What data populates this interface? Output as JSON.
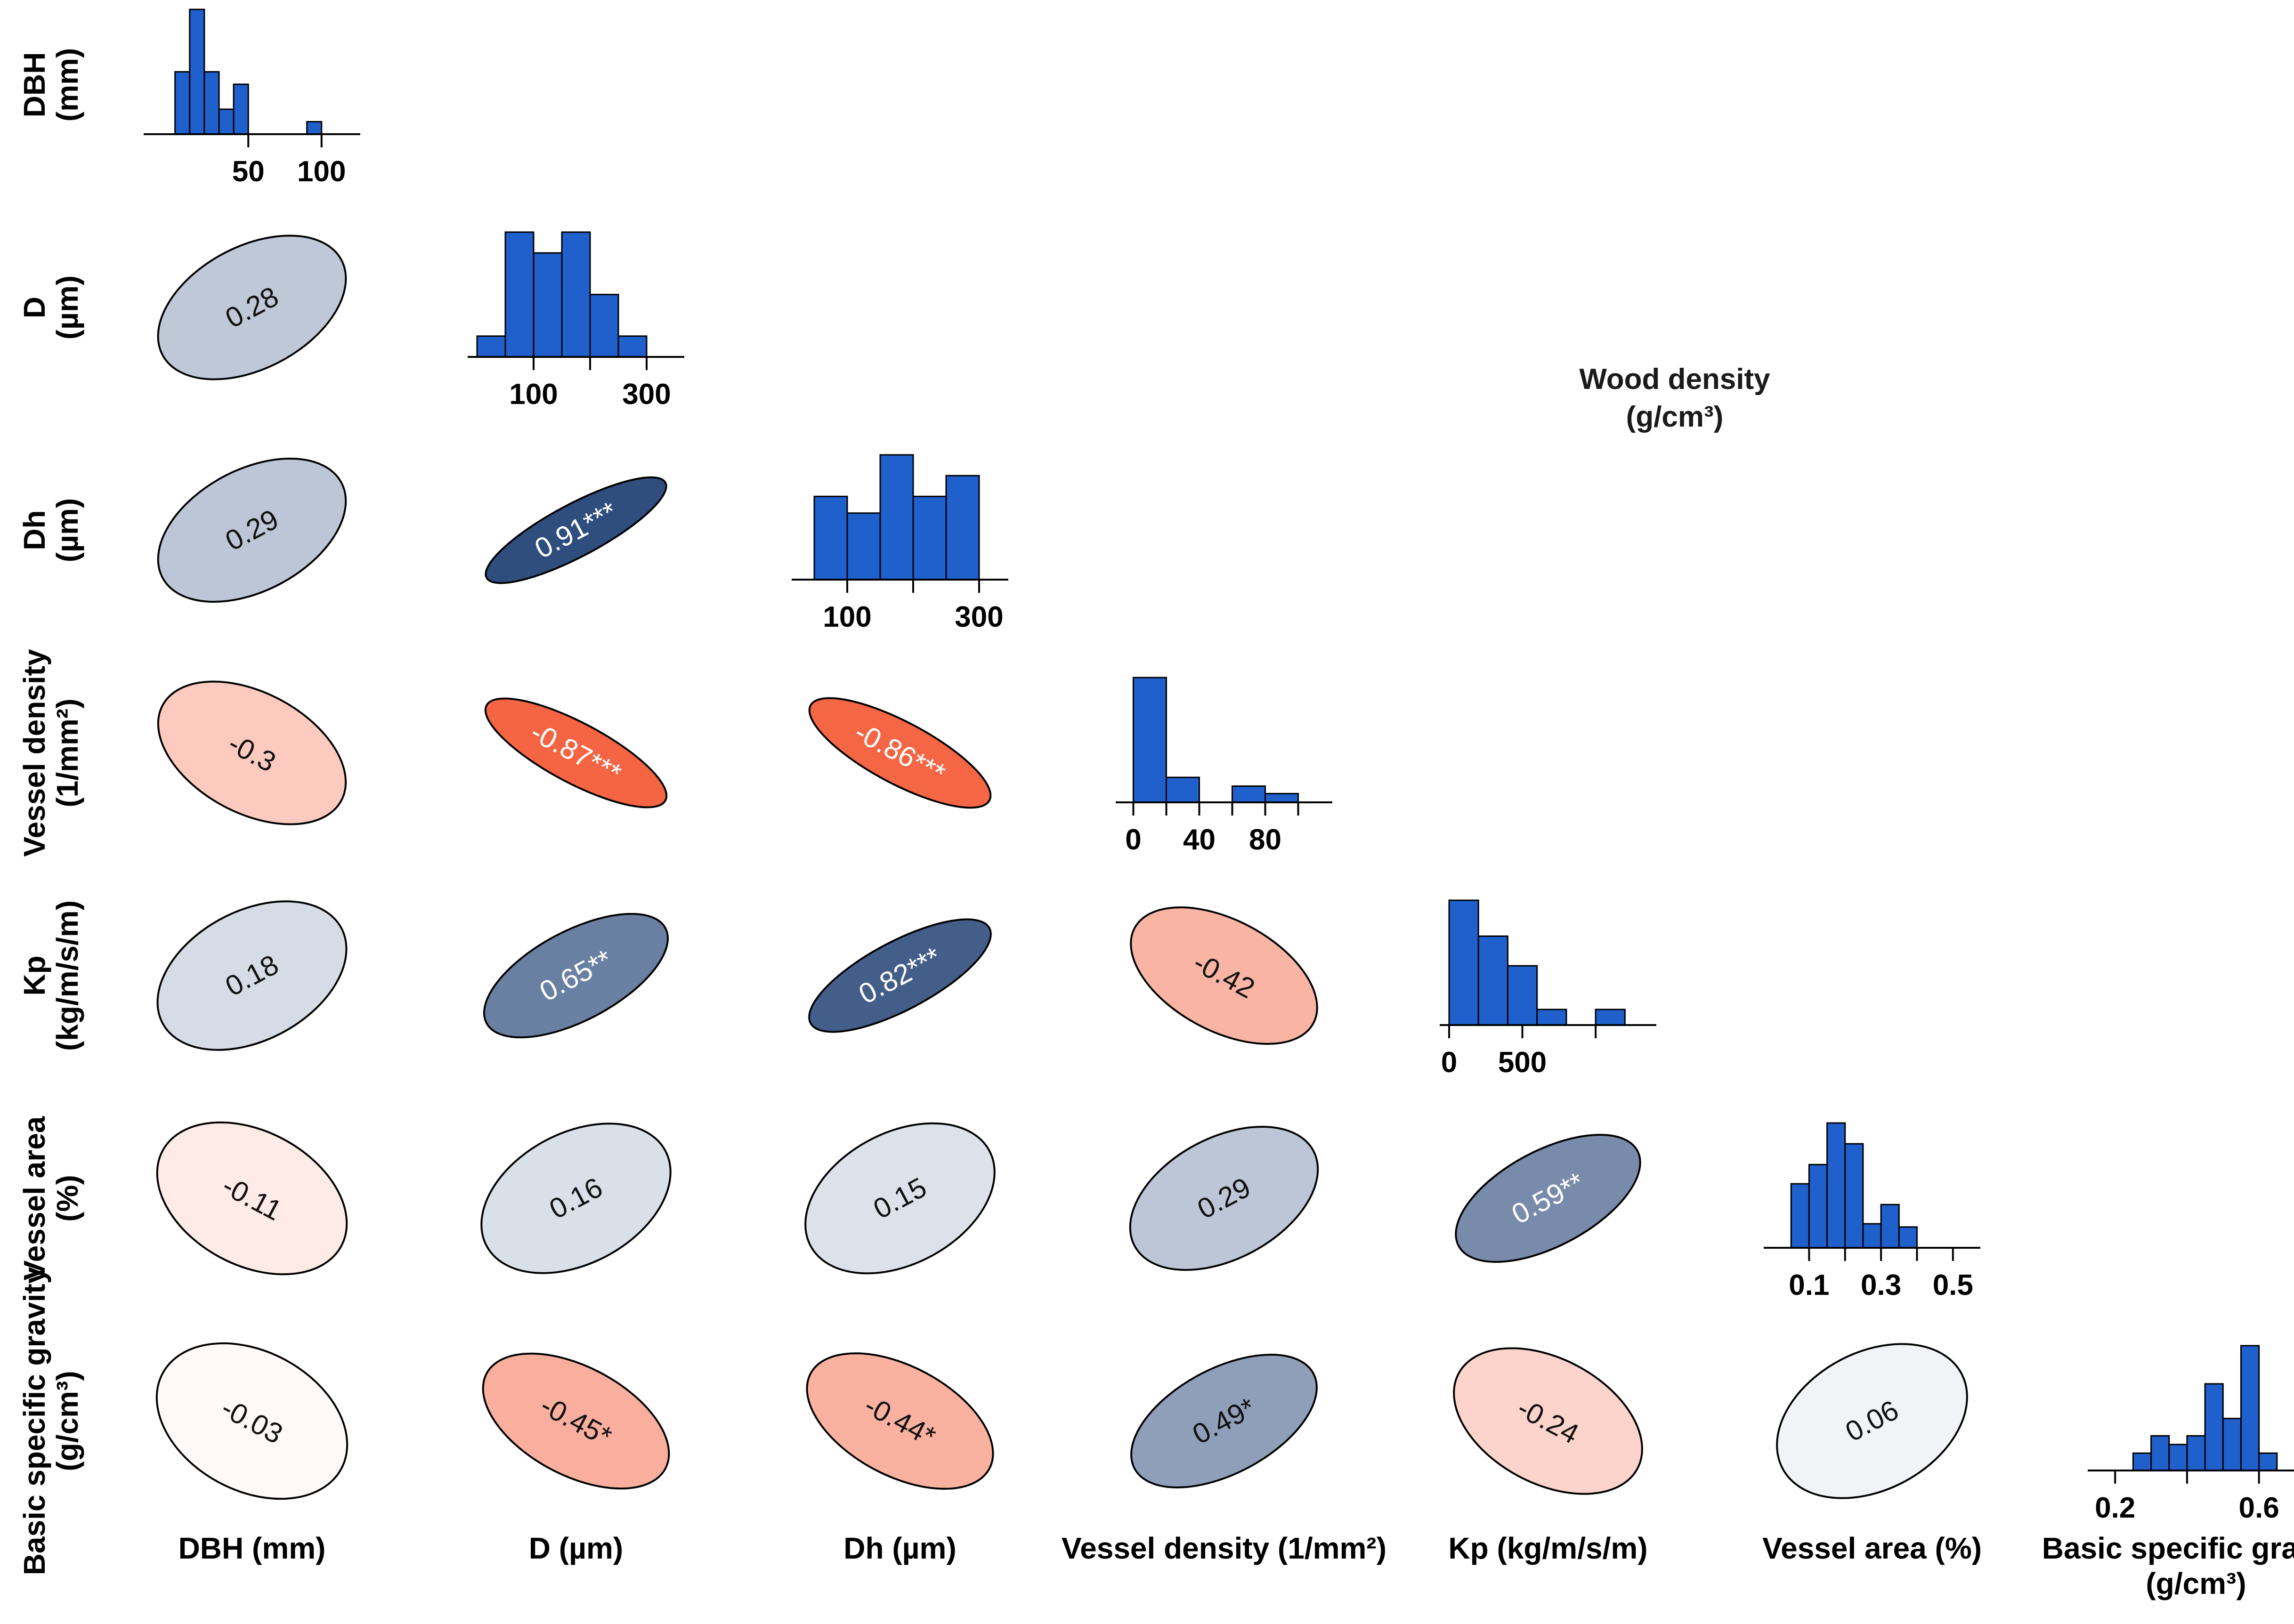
{
  "title": {
    "line1": "Wood density",
    "line2": "(g/cm³)"
  },
  "chart_data": {
    "type": "correlation-matrix",
    "variables": [
      {
        "key": "dbh",
        "name": "DBH",
        "unit": "(mm)",
        "bottom_label": "DBH (mm)"
      },
      {
        "key": "d",
        "name": "D",
        "unit": "(µm)",
        "bottom_label": "D (µm)"
      },
      {
        "key": "dh",
        "name": "Dh",
        "unit": "(µm)",
        "bottom_label": "Dh (µm)"
      },
      {
        "key": "vd",
        "name": "Vessel density",
        "unit": "(1/mm²)",
        "bottom_label": "Vessel density (1/mm²)"
      },
      {
        "key": "kp",
        "name": "Kp",
        "unit": "(kg/m/s/m)",
        "bottom_label": "Kp (kg/m/s/m)"
      },
      {
        "key": "va",
        "name": "Vessel area",
        "unit": "(%)",
        "bottom_label": "Vessel area (%)"
      },
      {
        "key": "bsg",
        "name": "Basic specific gravity",
        "unit": "(g/cm³)",
        "bottom_label": "Basic specific gravity",
        "bottom_label_2": "(g/cm³)"
      }
    ],
    "correlations": [
      {
        "row": 1,
        "col": 0,
        "label": "0.28",
        "r": 0.28
      },
      {
        "row": 2,
        "col": 0,
        "label": "0.29",
        "r": 0.29
      },
      {
        "row": 2,
        "col": 1,
        "label": "0.91***",
        "r": 0.91
      },
      {
        "row": 3,
        "col": 0,
        "label": "-0.3",
        "r": -0.3
      },
      {
        "row": 3,
        "col": 1,
        "label": "-0.87***",
        "r": -0.87
      },
      {
        "row": 3,
        "col": 2,
        "label": "-0.86***",
        "r": -0.86
      },
      {
        "row": 4,
        "col": 0,
        "label": "0.18",
        "r": 0.18
      },
      {
        "row": 4,
        "col": 1,
        "label": "0.65**",
        "r": 0.65
      },
      {
        "row": 4,
        "col": 2,
        "label": "0.82***",
        "r": 0.82
      },
      {
        "row": 4,
        "col": 3,
        "label": "-0.42",
        "r": -0.42
      },
      {
        "row": 5,
        "col": 0,
        "label": "-0.11",
        "r": -0.11
      },
      {
        "row": 5,
        "col": 1,
        "label": "0.16",
        "r": 0.16
      },
      {
        "row": 5,
        "col": 2,
        "label": "0.15",
        "r": 0.15
      },
      {
        "row": 5,
        "col": 3,
        "label": "0.29",
        "r": 0.29
      },
      {
        "row": 5,
        "col": 4,
        "label": "0.59**",
        "r": 0.59
      },
      {
        "row": 6,
        "col": 0,
        "label": "-0.03",
        "r": -0.03
      },
      {
        "row": 6,
        "col": 1,
        "label": "-0.45*",
        "r": -0.45
      },
      {
        "row": 6,
        "col": 2,
        "label": "-0.44*",
        "r": -0.44
      },
      {
        "row": 6,
        "col": 3,
        "label": "0.49*",
        "r": 0.49
      },
      {
        "row": 6,
        "col": 4,
        "label": "-0.24",
        "r": -0.24
      },
      {
        "row": 6,
        "col": 5,
        "label": "0.06",
        "r": 0.06
      }
    ],
    "histograms": [
      {
        "var": 0,
        "bins": [
          0,
          10,
          20,
          30,
          40,
          50,
          60,
          70,
          80,
          90,
          100
        ],
        "counts": [
          5,
          10,
          5,
          2,
          4,
          0,
          0,
          0,
          0,
          1
        ],
        "ticks": [
          50,
          100
        ],
        "xlim": [
          -15,
          120
        ]
      },
      {
        "var": 1,
        "bins": [
          50,
          100,
          150,
          200,
          250,
          300
        ],
        "counts": [
          1,
          6,
          5,
          6,
          3,
          1
        ],
        "bin_start": 0,
        "bin_width": 50,
        "ticks": [
          100,
          200,
          300
        ],
        "tick_labels": [
          "100",
          "",
          "300"
        ],
        "xlim": [
          0,
          350
        ]
      },
      {
        "var": 2,
        "bins": [
          50,
          100,
          150,
          200,
          250,
          300
        ],
        "counts": [
          2,
          1.6,
          3,
          2,
          2.5
        ],
        "bin_start": 50,
        "bin_width": 50,
        "ticks": [
          100,
          200,
          300
        ],
        "tick_labels": [
          "100",
          "",
          "300"
        ],
        "xlim": [
          30,
          330
        ]
      },
      {
        "var": 3,
        "counts": [
          10,
          2,
          0,
          1.3,
          0.7
        ],
        "bin_start": 0,
        "bin_width": 20,
        "ticks": [
          0,
          20,
          40,
          60,
          80,
          100
        ],
        "tick_labels": [
          "0",
          "",
          "40",
          "",
          "80",
          ""
        ],
        "xlim": [
          -5,
          115
        ]
      },
      {
        "var": 4,
        "counts": [
          8,
          5.7,
          3.8,
          1,
          0,
          1
        ],
        "bin_start": 0,
        "bin_width": 200,
        "ticks": [
          0,
          500,
          1000
        ],
        "tick_labels": [
          "0",
          "500",
          ""
        ],
        "xlim": [
          0,
          1350
        ]
      },
      {
        "var": 5,
        "counts": [
          4,
          5.2,
          7.8,
          6.5,
          1.5,
          2.7,
          1.3
        ],
        "bin_start": 0.05,
        "bin_width": 0.05,
        "ticks": [
          0.1,
          0.2,
          0.3,
          0.4,
          0.5
        ],
        "tick_labels": [
          "0.1",
          "",
          "0.3",
          "",
          "0.5"
        ],
        "xlim": [
          0.0,
          0.55
        ]
      },
      {
        "var": 6,
        "counts": [
          1,
          2,
          1.5,
          2,
          5,
          3,
          7.2,
          1
        ],
        "bin_start": 0.25,
        "bin_width": 0.05,
        "ticks": [
          0.2,
          0.4,
          0.6
        ],
        "tick_labels": [
          "0.2",
          "",
          "0.6"
        ],
        "xlim": [
          0.15,
          0.7
        ]
      }
    ],
    "colors": {
      "positive": "#1f3f73",
      "negative": "#f4512b",
      "histogram": "#2060cc"
    }
  }
}
